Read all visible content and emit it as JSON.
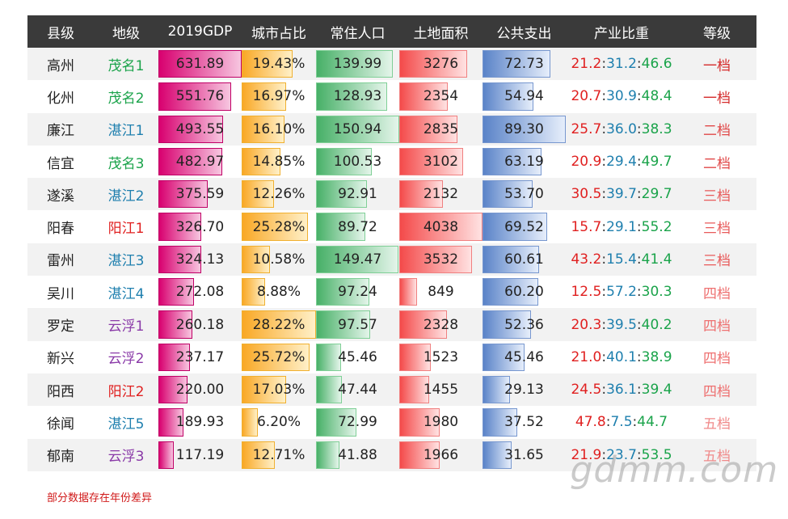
{
  "headers": [
    "县级",
    "地级",
    "2019GDP",
    "城市占比",
    "常住人口",
    "土地面积",
    "公共支出",
    "产业比重",
    "等级"
  ],
  "rows": [
    {
      "county": "高州",
      "prefecture": "茂名1",
      "pref_color": "#1aa34a",
      "gdp": "631.89",
      "ratio": "19.43%",
      "pop": "139.99",
      "area": "3276",
      "spend": "72.73",
      "ind": [
        "21.2",
        "31.2",
        "46.6"
      ],
      "grade": "一档",
      "grade_color": "#d52b2b"
    },
    {
      "county": "化州",
      "prefecture": "茂名2",
      "pref_color": "#1aa34a",
      "gdp": "551.76",
      "ratio": "16.97%",
      "pop": "128.93",
      "area": "2354",
      "spend": "54.94",
      "ind": [
        "20.7",
        "30.9",
        "48.4"
      ],
      "grade": "一档",
      "grade_color": "#d52b2b"
    },
    {
      "county": "廉江",
      "prefecture": "湛江1",
      "pref_color": "#1e7fae",
      "gdp": "493.55",
      "ratio": "16.10%",
      "pop": "150.94",
      "area": "2835",
      "spend": "89.30",
      "ind": [
        "25.7",
        "36.0",
        "38.3"
      ],
      "grade": "二档",
      "grade_color": "#e04848"
    },
    {
      "county": "信宜",
      "prefecture": "茂名3",
      "pref_color": "#1aa34a",
      "gdp": "482.97",
      "ratio": "14.85%",
      "pop": "100.53",
      "area": "3102",
      "spend": "63.19",
      "ind": [
        "20.9",
        "29.4",
        "49.7"
      ],
      "grade": "二档",
      "grade_color": "#e04848"
    },
    {
      "county": "遂溪",
      "prefecture": "湛江2",
      "pref_color": "#1e7fae",
      "gdp": "375.59",
      "ratio": "12.26%",
      "pop": "92.91",
      "area": "2132",
      "spend": "53.70",
      "ind": [
        "30.5",
        "39.7",
        "29.7"
      ],
      "grade": "三档",
      "grade_color": "#e85a5a"
    },
    {
      "county": "阳春",
      "prefecture": "阳江1",
      "pref_color": "#e02020",
      "gdp": "326.70",
      "ratio": "25.28%",
      "pop": "89.72",
      "area": "4038",
      "spend": "69.52",
      "ind": [
        "15.7",
        "29.1",
        "55.2"
      ],
      "grade": "三档",
      "grade_color": "#e85a5a"
    },
    {
      "county": "雷州",
      "prefecture": "湛江3",
      "pref_color": "#1e7fae",
      "gdp": "324.13",
      "ratio": "10.58%",
      "pop": "149.47",
      "area": "3532",
      "spend": "60.61",
      "ind": [
        "43.2",
        "15.4",
        "41.4"
      ],
      "grade": "三档",
      "grade_color": "#e85a5a"
    },
    {
      "county": "吴川",
      "prefecture": "湛江4",
      "pref_color": "#1e7fae",
      "gdp": "272.08",
      "ratio": "8.88%",
      "pop": "97.24",
      "area": "849",
      "spend": "60.20",
      "ind": [
        "12.5",
        "57.2",
        "30.3"
      ],
      "grade": "四档",
      "grade_color": "#ee7070"
    },
    {
      "county": "罗定",
      "prefecture": "云浮1",
      "pref_color": "#8a3aa8",
      "gdp": "260.18",
      "ratio": "28.22%",
      "pop": "97.57",
      "area": "2328",
      "spend": "52.36",
      "ind": [
        "20.3",
        "39.5",
        "40.2"
      ],
      "grade": "四档",
      "grade_color": "#ee7070"
    },
    {
      "county": "新兴",
      "prefecture": "云浮2",
      "pref_color": "#8a3aa8",
      "gdp": "237.17",
      "ratio": "25.72%",
      "pop": "45.46",
      "area": "1523",
      "spend": "45.46",
      "ind": [
        "21.0",
        "40.1",
        "38.9"
      ],
      "grade": "四档",
      "grade_color": "#ee7070"
    },
    {
      "county": "阳西",
      "prefecture": "阳江2",
      "pref_color": "#e02020",
      "gdp": "220.00",
      "ratio": "17.03%",
      "pop": "47.44",
      "area": "1455",
      "spend": "29.13",
      "ind": [
        "24.5",
        "36.1",
        "39.4"
      ],
      "grade": "四档",
      "grade_color": "#ee7070"
    },
    {
      "county": "徐闻",
      "prefecture": "湛江5",
      "pref_color": "#1e7fae",
      "gdp": "189.93",
      "ratio": "6.20%",
      "pop": "72.99",
      "area": "1980",
      "spend": "37.52",
      "ind": [
        "47.8",
        "7.5",
        "44.7"
      ],
      "grade": "五档",
      "grade_color": "#f08a8a"
    },
    {
      "county": "郁南",
      "prefecture": "云浮3",
      "pref_color": "#8a3aa8",
      "gdp": "117.19",
      "ratio": "12.71%",
      "pop": "41.88",
      "area": "1966",
      "spend": "31.65",
      "ind": [
        "21.9",
        "23.7",
        "53.5"
      ],
      "grade": "五档",
      "grade_color": "#f08a8a"
    }
  ],
  "note": "部分数据存在年份差异",
  "watermark": "gdmm.com"
}
